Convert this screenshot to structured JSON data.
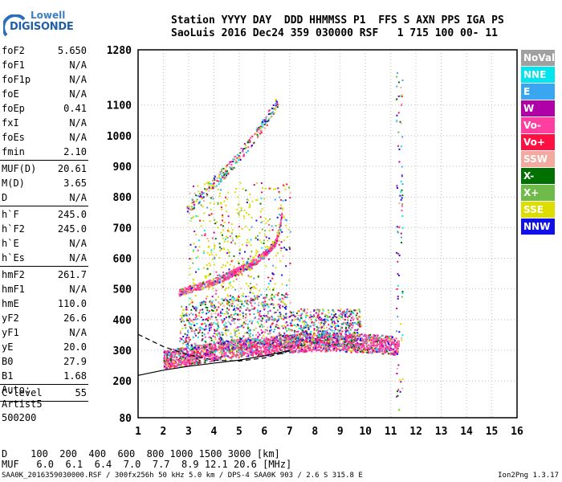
{
  "logo": {
    "line1": "Lowell",
    "line2": "DIGISONDE"
  },
  "header": {
    "line1": "Station YYYY DAY  DDD HHMMSS P1  FFS S AXN PPS IGA PS",
    "line2": "SaoLuis 2016 Dec24 359 030000 RSF   1 715 100 00- 11"
  },
  "params_a": [
    {
      "name": "foF2",
      "value": "5.650"
    },
    {
      "name": "foF1",
      "value": "N/A"
    },
    {
      "name": "foF1p",
      "value": "N/A"
    },
    {
      "name": "foE",
      "value": "N/A"
    },
    {
      "name": "foEp",
      "value": "0.41"
    },
    {
      "name": "fxI",
      "value": "N/A"
    },
    {
      "name": "foEs",
      "value": "N/A"
    },
    {
      "name": "fmin",
      "value": "2.10"
    }
  ],
  "params_b": [
    {
      "name": "MUF(D)",
      "value": "20.61"
    },
    {
      "name": "M(D)",
      "value": "3.65"
    },
    {
      "name": "D",
      "value": "N/A"
    }
  ],
  "params_c": [
    {
      "name": "h`F",
      "value": "245.0"
    },
    {
      "name": "h`F2",
      "value": "245.0"
    },
    {
      "name": "h`E",
      "value": "N/A"
    },
    {
      "name": "h`Es",
      "value": "N/A"
    }
  ],
  "params_d": [
    {
      "name": "hmF2",
      "value": "261.7"
    },
    {
      "name": "hmF1",
      "value": "N/A"
    },
    {
      "name": "hmE",
      "value": "110.0"
    },
    {
      "name": "yF2",
      "value": "26.6"
    },
    {
      "name": "yF1",
      "value": "N/A"
    },
    {
      "name": "yE",
      "value": "20.0"
    },
    {
      "name": "B0",
      "value": "27.9"
    },
    {
      "name": "B1",
      "value": "1.68"
    }
  ],
  "params_e": [
    {
      "name": "C-level",
      "value": "55"
    }
  ],
  "auto": {
    "line1": "Auto:",
    "line2": "Artist5",
    "line3": "500200"
  },
  "legend": [
    {
      "label": "NoVal",
      "color": "#a0a0a0"
    },
    {
      "label": "NNE",
      "color": "#00e5ee"
    },
    {
      "label": "E",
      "color": "#3aa6f0"
    },
    {
      "label": "W",
      "color": "#b000a8"
    },
    {
      "label": "Vo-",
      "color": "#ff3fa0"
    },
    {
      "label": "Vo+",
      "color": "#ff1040"
    },
    {
      "label": "SSW",
      "color": "#f4a9a0"
    },
    {
      "label": "X-",
      "color": "#007000"
    },
    {
      "label": "X+",
      "color": "#6fba4a"
    },
    {
      "label": "SSE",
      "color": "#dddd00"
    },
    {
      "label": "NNW",
      "color": "#1010e8"
    }
  ],
  "footer": {
    "d_line": "D    100  200  400  600  800 1000 1500 3000 [km]",
    "muf_line": "MUF   6.0  6.1  6.4  7.0  7.7  8.9 12.1 20.6 [MHz]",
    "meta": "SAA0K_2016359030000.RSF / 300fx256h 50 kHz 5.0 km / DPS-4 SAA0K 903 / 2.6 S 315.8 E",
    "version": "Ion2Png 1.3.17"
  },
  "chart_data": {
    "type": "scatter",
    "xlim": [
      1,
      16
    ],
    "ylim": [
      80,
      1280
    ],
    "xticks": [
      "1",
      "2",
      "3",
      "4",
      "5",
      "6",
      "7",
      "8",
      "9",
      "10",
      "11",
      "12",
      "13",
      "14",
      "15",
      "16"
    ],
    "yticks": [
      {
        "value": 80,
        "label": "80"
      },
      {
        "value": 200,
        "label": "200"
      },
      {
        "value": 300,
        "label": "300"
      },
      {
        "value": 400,
        "label": "400"
      },
      {
        "value": 500,
        "label": "500"
      },
      {
        "value": 600,
        "label": "600"
      },
      {
        "value": 700,
        "label": "700"
      },
      {
        "value": 800,
        "label": "800"
      },
      {
        "value": 900,
        "label": "900"
      },
      {
        "value": 1000,
        "label": "1000"
      },
      {
        "value": 1100,
        "label": "1100"
      },
      {
        "value": 1280,
        "label": "1280"
      }
    ],
    "grid": "dotted",
    "trace_o_mode": {
      "x": [
        2.6,
        3.2,
        3.8,
        4.4,
        5.0,
        5.6,
        6.0,
        6.4,
        6.6,
        6.7
      ],
      "y": [
        490,
        505,
        520,
        540,
        565,
        590,
        615,
        650,
        700,
        760
      ]
    },
    "trace_o_mode_2hop": {
      "x": [
        2.9,
        3.4,
        4.0,
        4.6,
        5.2,
        5.8,
        6.2,
        6.5
      ],
      "y": [
        760,
        800,
        850,
        900,
        960,
        1020,
        1070,
        1110
      ]
    },
    "trace_base": {
      "x": [
        2.0,
        3.0,
        4.0,
        5.0,
        6.0,
        7.0,
        8.0,
        9.0,
        10.0,
        11.0,
        11.3
      ],
      "y": [
        262,
        275,
        288,
        300,
        305,
        315,
        320,
        318,
        315,
        310,
        305
      ]
    },
    "profile_solid": {
      "x": [
        1,
        2,
        3,
        4,
        5,
        6,
        7
      ],
      "y": [
        218,
        235,
        248,
        258,
        268,
        282,
        300
      ]
    },
    "profile_dashed": {
      "x": [
        1,
        2,
        3,
        4,
        5,
        6,
        7
      ],
      "y": [
        352,
        312,
        285,
        268,
        265,
        275,
        298
      ]
    }
  }
}
